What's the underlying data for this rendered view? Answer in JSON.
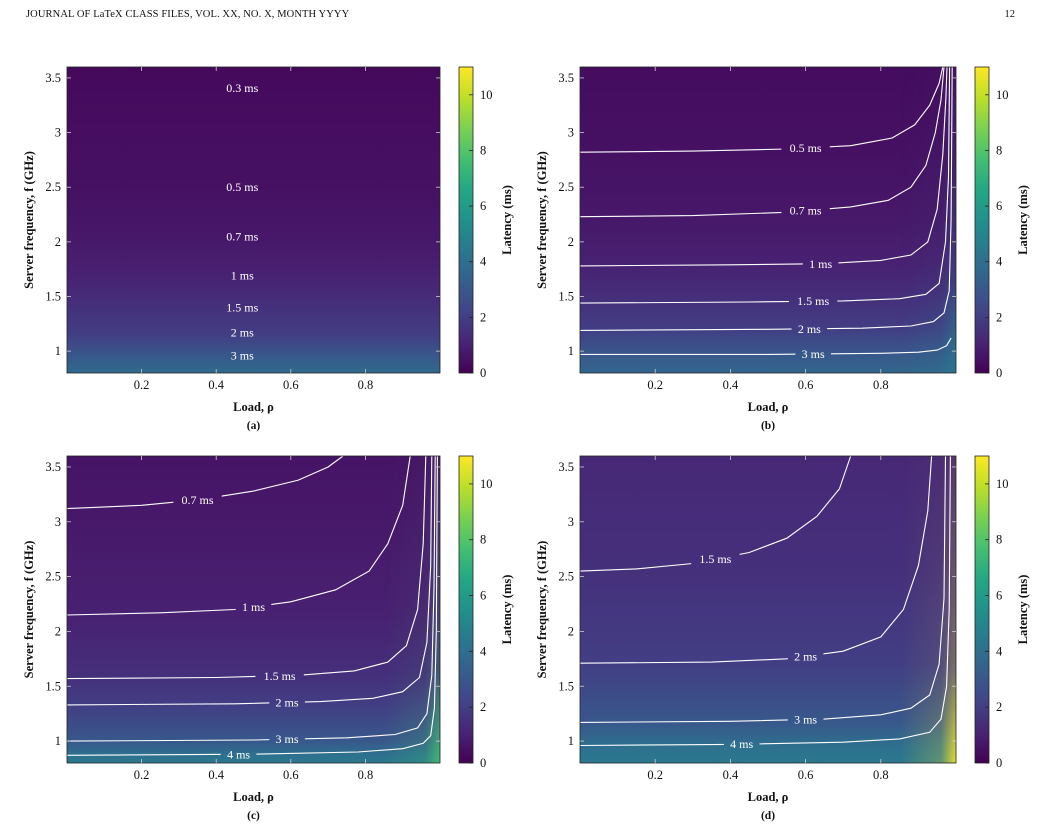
{
  "header": {
    "journal_line": "JOURNAL OF LaTeX CLASS FILES, VOL. XX, NO. X, MONTH YYYY",
    "page_number": "12"
  },
  "chart_data": [
    {
      "type": "heatmap",
      "subcaption": "(a)",
      "xlabel": "Load, ρ",
      "ylabel": "Server frequency, f (GHz)",
      "colorbar_label": "Latency (ms)",
      "colormap": "viridis",
      "xlim": [
        0,
        1
      ],
      "ylim": [
        0.8,
        3.6
      ],
      "x_ticks": [
        0.2,
        0.4,
        0.6,
        0.8
      ],
      "y_ticks": [
        1,
        1.5,
        2,
        2.5,
        3,
        3.5
      ],
      "colorbar_range": [
        0,
        11
      ],
      "colorbar_ticks": [
        0,
        2,
        4,
        6,
        8,
        10
      ],
      "contours": [
        {
          "label": "0.3 ms",
          "label_x": 0.47,
          "points": [
            [
              0.0,
              3.41
            ],
            [
              0.99,
              3.41
            ]
          ]
        },
        {
          "label": "0.5 ms",
          "label_x": 0.47,
          "points": [
            [
              0.0,
              2.5
            ],
            [
              0.99,
              2.5
            ]
          ]
        },
        {
          "label": "0.7 ms",
          "label_x": 0.47,
          "points": [
            [
              0.0,
              2.05
            ],
            [
              0.99,
              2.05
            ]
          ]
        },
        {
          "label": "1 ms",
          "label_x": 0.47,
          "points": [
            [
              0.0,
              1.69
            ],
            [
              0.99,
              1.69
            ]
          ]
        },
        {
          "label": "1.5 ms",
          "label_x": 0.47,
          "points": [
            [
              0.0,
              1.4
            ],
            [
              0.99,
              1.4
            ]
          ]
        },
        {
          "label": "2 ms",
          "label_x": 0.47,
          "points": [
            [
              0.0,
              1.17
            ],
            [
              0.99,
              1.17
            ]
          ]
        },
        {
          "label": "3 ms",
          "label_x": 0.47,
          "points": [
            [
              0.0,
              0.96
            ],
            [
              0.99,
              0.96
            ]
          ]
        }
      ]
    },
    {
      "type": "heatmap",
      "subcaption": "(b)",
      "xlabel": "Load, ρ",
      "ylabel": "Server frequency, f (GHz)",
      "colorbar_label": "Latency (ms)",
      "colormap": "viridis",
      "xlim": [
        0,
        1
      ],
      "ylim": [
        0.8,
        3.6
      ],
      "x_ticks": [
        0.2,
        0.4,
        0.6,
        0.8
      ],
      "y_ticks": [
        1,
        1.5,
        2,
        2.5,
        3,
        3.5
      ],
      "colorbar_range": [
        0,
        11
      ],
      "colorbar_ticks": [
        0,
        2,
        4,
        6,
        8,
        10
      ],
      "contours": [
        {
          "label": "0.5 ms",
          "label_x": 0.6,
          "points": [
            [
              0.0,
              2.82
            ],
            [
              0.3,
              2.83
            ],
            [
              0.55,
              2.85
            ],
            [
              0.72,
              2.88
            ],
            [
              0.83,
              2.95
            ],
            [
              0.89,
              3.07
            ],
            [
              0.93,
              3.25
            ],
            [
              0.955,
              3.45
            ],
            [
              0.965,
              3.6
            ]
          ]
        },
        {
          "label": "0.7 ms",
          "label_x": 0.6,
          "points": [
            [
              0.0,
              2.23
            ],
            [
              0.3,
              2.24
            ],
            [
              0.55,
              2.27
            ],
            [
              0.72,
              2.32
            ],
            [
              0.82,
              2.38
            ],
            [
              0.88,
              2.5
            ],
            [
              0.92,
              2.7
            ],
            [
              0.945,
              3.0
            ],
            [
              0.96,
              3.3
            ],
            [
              0.968,
              3.6
            ]
          ]
        },
        {
          "label": "1 ms",
          "label_x": 0.64,
          "points": [
            [
              0.0,
              1.78
            ],
            [
              0.4,
              1.79
            ],
            [
              0.65,
              1.8
            ],
            [
              0.8,
              1.83
            ],
            [
              0.88,
              1.88
            ],
            [
              0.925,
              2.0
            ],
            [
              0.95,
              2.3
            ],
            [
              0.965,
              2.8
            ],
            [
              0.973,
              3.3
            ],
            [
              0.976,
              3.6
            ]
          ]
        },
        {
          "label": "1.5 ms",
          "label_x": 0.62,
          "points": [
            [
              0.0,
              1.44
            ],
            [
              0.45,
              1.45
            ],
            [
              0.7,
              1.46
            ],
            [
              0.85,
              1.48
            ],
            [
              0.92,
              1.52
            ],
            [
              0.955,
              1.62
            ],
            [
              0.972,
              2.0
            ],
            [
              0.98,
              2.6
            ],
            [
              0.983,
              3.6
            ]
          ]
        },
        {
          "label": "2 ms",
          "label_x": 0.61,
          "points": [
            [
              0.0,
              1.19
            ],
            [
              0.5,
              1.2
            ],
            [
              0.75,
              1.21
            ],
            [
              0.88,
              1.23
            ],
            [
              0.94,
              1.27
            ],
            [
              0.968,
              1.35
            ],
            [
              0.982,
              1.55
            ],
            [
              0.987,
              2.2
            ],
            [
              0.99,
              3.6
            ]
          ]
        },
        {
          "label": "3 ms",
          "label_x": 0.62,
          "points": [
            [
              0.0,
              0.97
            ],
            [
              0.5,
              0.97
            ],
            [
              0.8,
              0.98
            ],
            [
              0.9,
              0.99
            ],
            [
              0.95,
              1.01
            ],
            [
              0.975,
              1.05
            ],
            [
              0.987,
              1.12
            ]
          ]
        }
      ]
    },
    {
      "type": "heatmap",
      "subcaption": "(c)",
      "xlabel": "Load, ρ",
      "ylabel": "Server frequency, f (GHz)",
      "colorbar_label": "Latency (ms)",
      "colormap": "viridis",
      "xlim": [
        0,
        1
      ],
      "ylim": [
        0.8,
        3.6
      ],
      "x_ticks": [
        0.2,
        0.4,
        0.6,
        0.8
      ],
      "y_ticks": [
        1,
        1.5,
        2,
        2.5,
        3,
        3.5
      ],
      "colorbar_range": [
        0,
        11
      ],
      "colorbar_ticks": [
        0,
        2,
        4,
        6,
        8,
        10
      ],
      "contours": [
        {
          "label": "0.7 ms",
          "label_x": 0.35,
          "points": [
            [
              0.0,
              3.12
            ],
            [
              0.2,
              3.15
            ],
            [
              0.35,
              3.2
            ],
            [
              0.5,
              3.28
            ],
            [
              0.62,
              3.38
            ],
            [
              0.7,
              3.5
            ],
            [
              0.74,
              3.6
            ]
          ]
        },
        {
          "label": "1 ms",
          "label_x": 0.5,
          "points": [
            [
              0.0,
              2.15
            ],
            [
              0.25,
              2.17
            ],
            [
              0.45,
              2.2
            ],
            [
              0.6,
              2.27
            ],
            [
              0.72,
              2.38
            ],
            [
              0.81,
              2.55
            ],
            [
              0.86,
              2.8
            ],
            [
              0.9,
              3.15
            ],
            [
              0.92,
              3.6
            ]
          ]
        },
        {
          "label": "1.5 ms",
          "label_x": 0.57,
          "points": [
            [
              0.0,
              1.57
            ],
            [
              0.4,
              1.58
            ],
            [
              0.62,
              1.6
            ],
            [
              0.77,
              1.64
            ],
            [
              0.86,
              1.72
            ],
            [
              0.91,
              1.87
            ],
            [
              0.94,
              2.2
            ],
            [
              0.955,
              2.8
            ],
            [
              0.962,
              3.6
            ]
          ]
        },
        {
          "label": "2 ms",
          "label_x": 0.59,
          "points": [
            [
              0.0,
              1.33
            ],
            [
              0.45,
              1.34
            ],
            [
              0.68,
              1.36
            ],
            [
              0.82,
              1.39
            ],
            [
              0.9,
              1.45
            ],
            [
              0.945,
              1.58
            ],
            [
              0.965,
              1.9
            ],
            [
              0.975,
              2.6
            ],
            [
              0.978,
              3.6
            ]
          ]
        },
        {
          "label": "3 ms",
          "label_x": 0.59,
          "points": [
            [
              0.0,
              1.0
            ],
            [
              0.5,
              1.01
            ],
            [
              0.75,
              1.03
            ],
            [
              0.88,
              1.06
            ],
            [
              0.94,
              1.12
            ],
            [
              0.965,
              1.25
            ],
            [
              0.978,
              1.6
            ],
            [
              0.984,
              2.4
            ],
            [
              0.987,
              3.6
            ]
          ]
        },
        {
          "label": "4 ms",
          "label_x": 0.46,
          "points": [
            [
              0.0,
              0.87
            ],
            [
              0.5,
              0.88
            ],
            [
              0.78,
              0.9
            ],
            [
              0.9,
              0.93
            ],
            [
              0.955,
              0.98
            ],
            [
              0.975,
              1.05
            ],
            [
              0.985,
              1.3
            ],
            [
              0.99,
              2.0
            ],
            [
              0.993,
              3.6
            ]
          ]
        }
      ]
    },
    {
      "type": "heatmap",
      "subcaption": "(d)",
      "xlabel": "Load, ρ",
      "ylabel": "Server frequency, f (GHz)",
      "colorbar_label": "Latency (ms)",
      "colormap": "viridis",
      "xlim": [
        0,
        1
      ],
      "ylim": [
        0.8,
        3.6
      ],
      "x_ticks": [
        0.2,
        0.4,
        0.6,
        0.8
      ],
      "y_ticks": [
        1,
        1.5,
        2,
        2.5,
        3,
        3.5
      ],
      "colorbar_range": [
        0,
        11
      ],
      "colorbar_ticks": [
        0,
        2,
        4,
        6,
        8,
        10
      ],
      "contours": [
        {
          "label": "1.5 ms",
          "label_x": 0.36,
          "points": [
            [
              0.0,
              2.55
            ],
            [
              0.15,
              2.57
            ],
            [
              0.3,
              2.62
            ],
            [
              0.45,
              2.72
            ],
            [
              0.55,
              2.85
            ],
            [
              0.63,
              3.05
            ],
            [
              0.69,
              3.3
            ],
            [
              0.72,
              3.6
            ]
          ]
        },
        {
          "label": "2 ms",
          "label_x": 0.6,
          "points": [
            [
              0.0,
              1.71
            ],
            [
              0.35,
              1.72
            ],
            [
              0.55,
              1.75
            ],
            [
              0.7,
              1.82
            ],
            [
              0.8,
              1.95
            ],
            [
              0.86,
              2.2
            ],
            [
              0.9,
              2.6
            ],
            [
              0.925,
              3.1
            ],
            [
              0.935,
              3.6
            ]
          ]
        },
        {
          "label": "3 ms",
          "label_x": 0.6,
          "points": [
            [
              0.0,
              1.17
            ],
            [
              0.4,
              1.18
            ],
            [
              0.65,
              1.2
            ],
            [
              0.8,
              1.24
            ],
            [
              0.88,
              1.3
            ],
            [
              0.93,
              1.42
            ],
            [
              0.955,
              1.7
            ],
            [
              0.968,
              2.3
            ],
            [
              0.972,
              3.6
            ]
          ]
        },
        {
          "label": "4 ms",
          "label_x": 0.43,
          "points": [
            [
              0.0,
              0.96
            ],
            [
              0.4,
              0.97
            ],
            [
              0.7,
              0.99
            ],
            [
              0.85,
              1.02
            ],
            [
              0.93,
              1.08
            ],
            [
              0.96,
              1.2
            ],
            [
              0.975,
              1.5
            ],
            [
              0.982,
              2.2
            ],
            [
              0.985,
              3.6
            ]
          ]
        }
      ]
    }
  ]
}
